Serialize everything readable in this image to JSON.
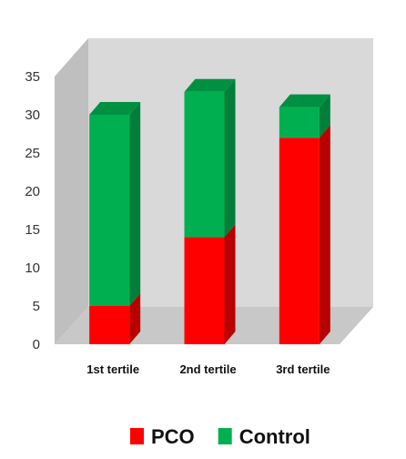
{
  "chart_data": {
    "type": "bar",
    "stacked": true,
    "three_d": true,
    "categories": [
      "1st tertile",
      "2nd tertile",
      "3rd tertile"
    ],
    "series": [
      {
        "name": "PCO",
        "values": [
          5,
          14,
          27
        ],
        "color": "#ff0000"
      },
      {
        "name": "Control",
        "values": [
          25,
          19,
          4
        ],
        "color": "#00b050"
      }
    ],
    "y_ticks": [
      0,
      5,
      10,
      15,
      20,
      25,
      30,
      35
    ],
    "ylim": [
      0,
      35
    ],
    "legend_position": "bottom",
    "grid": false,
    "title": "",
    "xlabel": "",
    "ylabel": ""
  }
}
